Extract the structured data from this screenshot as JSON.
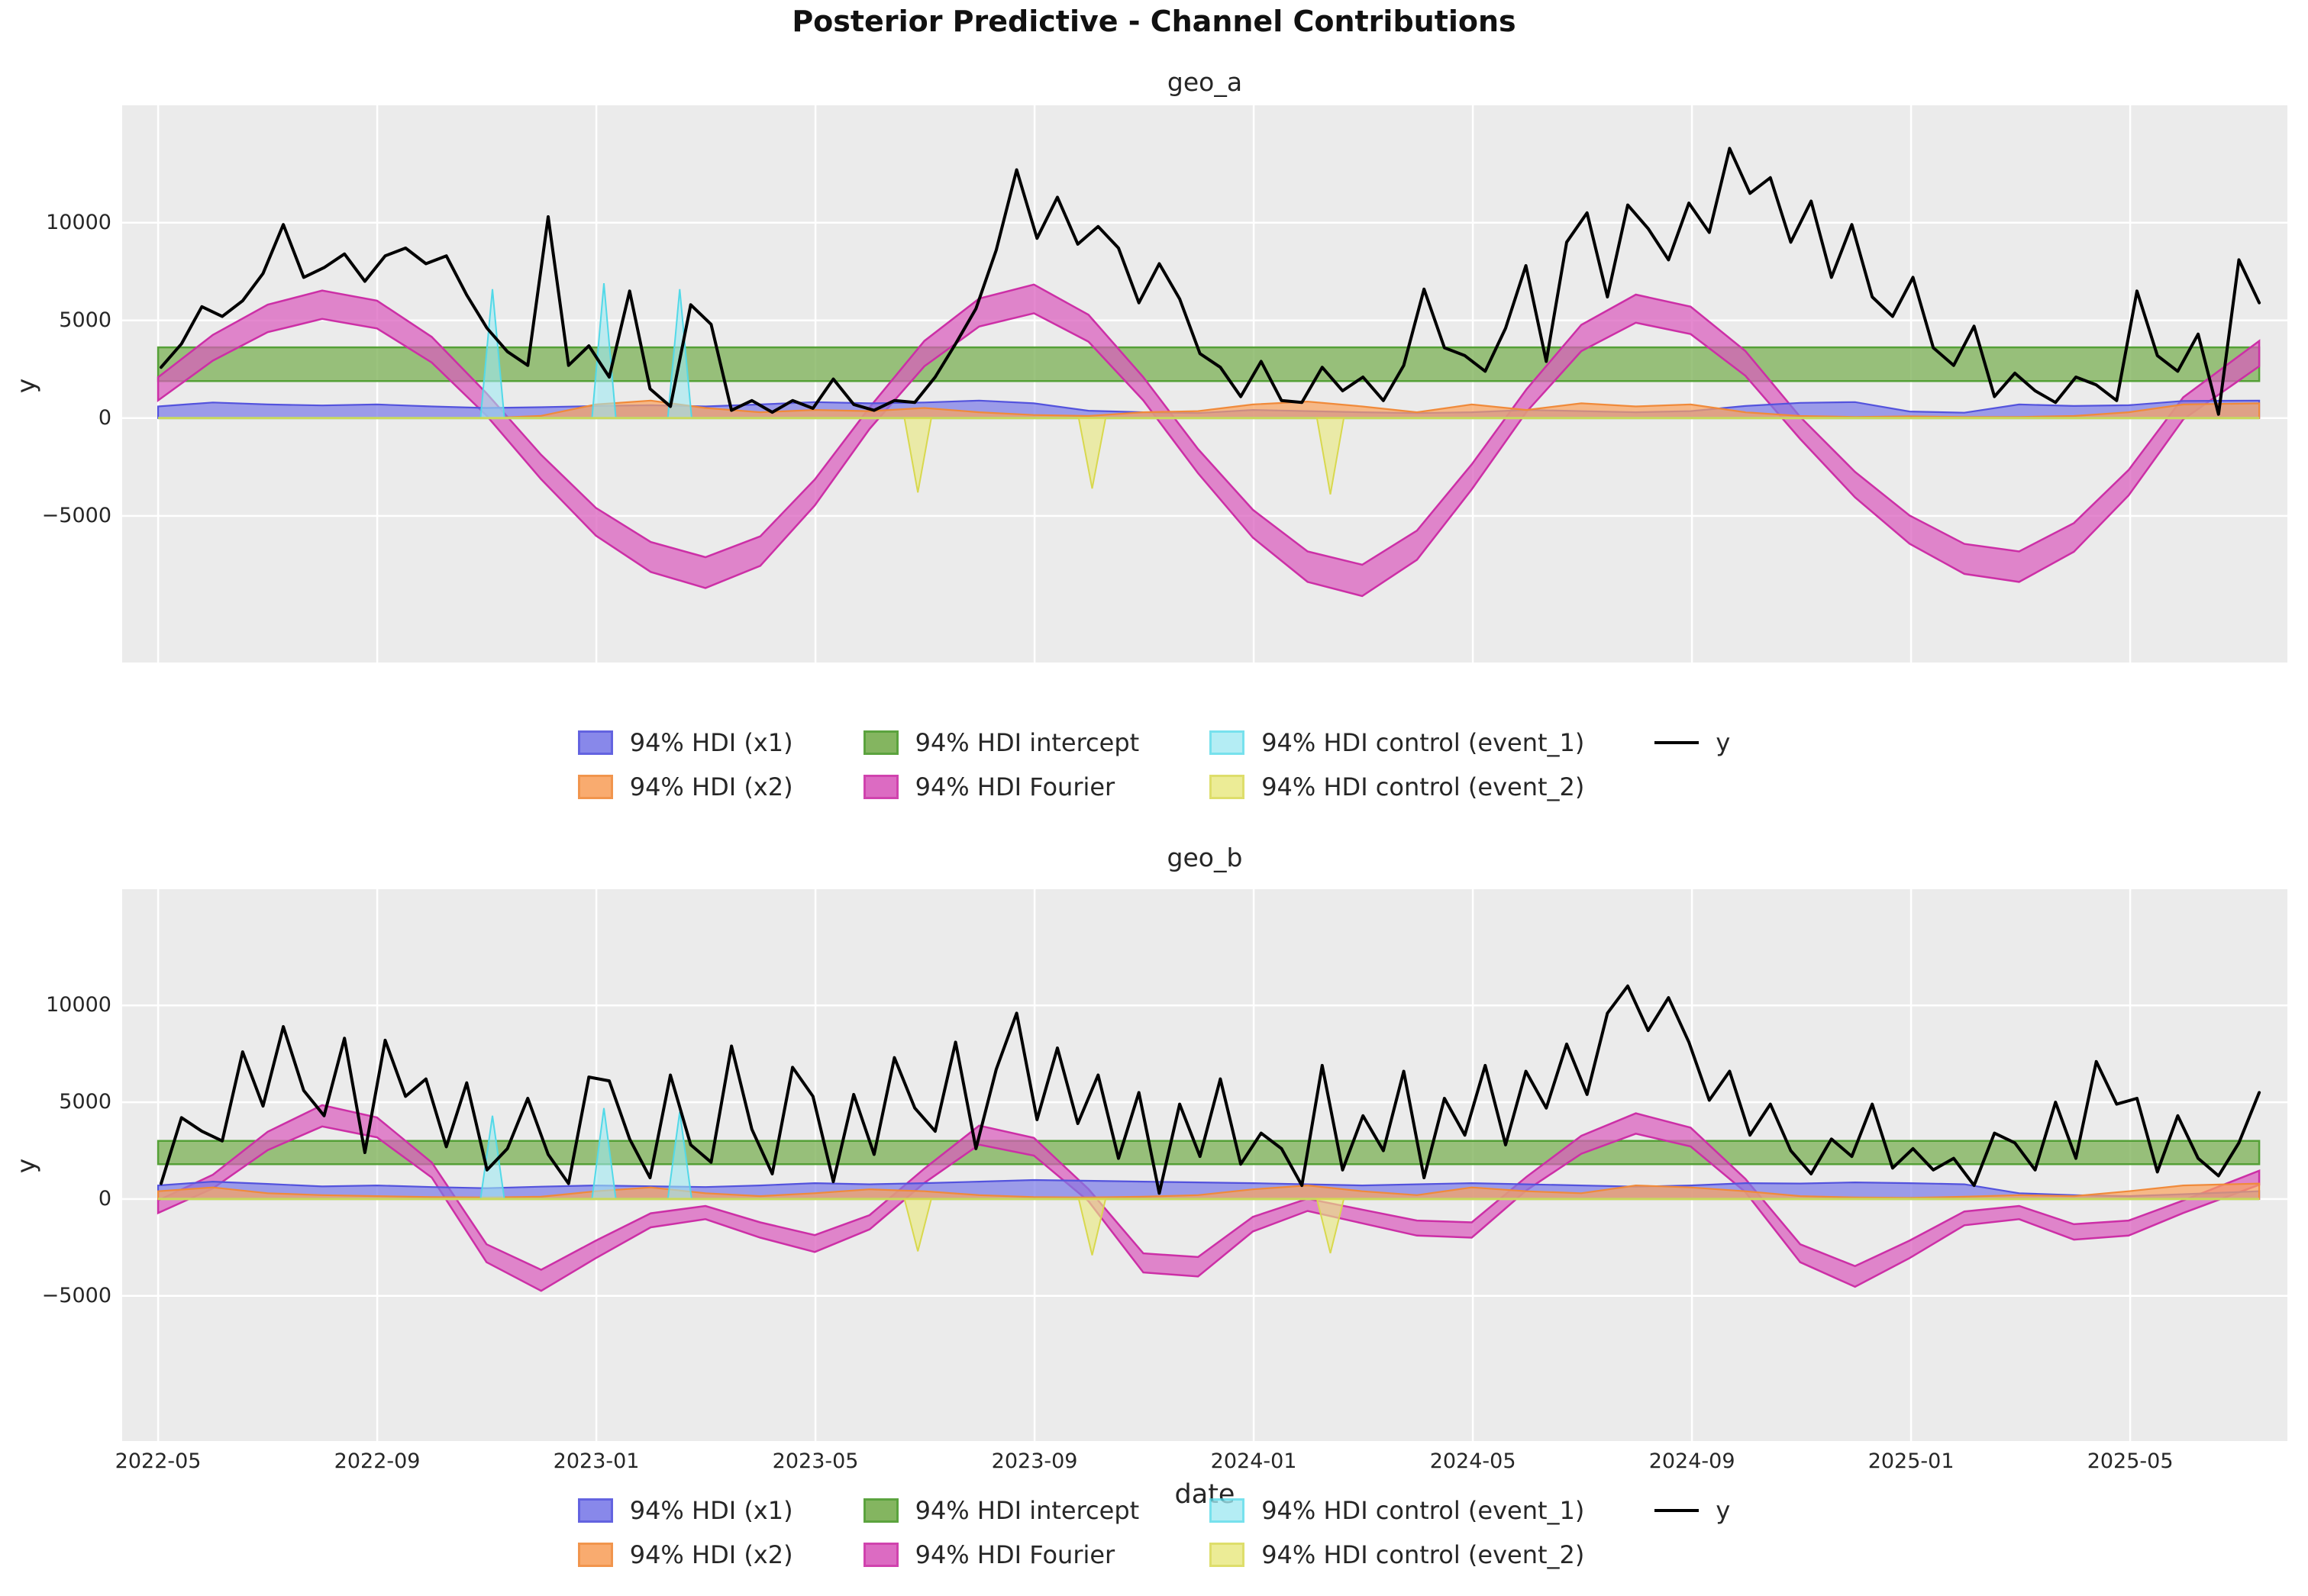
{
  "figure": {
    "title": "Posterior Predictive - Channel Contributions",
    "background": "#ffffff"
  },
  "axis": {
    "xlabel": "date",
    "ylabel": "y",
    "plot_bg": "#ebebeb",
    "grid_color": "#ffffff",
    "ylim": [
      -12500,
      16000
    ],
    "x_data_start": 0.0166,
    "x_data_end": 0.987,
    "xticks": [
      {
        "label": "2022-05",
        "f": 0.0166
      },
      {
        "label": "2022-09",
        "f": 0.1178
      },
      {
        "label": "2023-01",
        "f": 0.219
      },
      {
        "label": "2023-05",
        "f": 0.3202
      },
      {
        "label": "2023-09",
        "f": 0.4214
      },
      {
        "label": "2024-01",
        "f": 0.5226
      },
      {
        "label": "2024-05",
        "f": 0.6238
      },
      {
        "label": "2024-09",
        "f": 0.725
      },
      {
        "label": "2025-01",
        "f": 0.8262
      },
      {
        "label": "2025-05",
        "f": 0.9274
      }
    ],
    "yticks": [
      {
        "label": "10000",
        "value": 10000
      },
      {
        "label": "5000",
        "value": 5000
      },
      {
        "label": "0",
        "value": 0
      },
      {
        "label": "−5000",
        "value": -5000
      }
    ],
    "band_x": [
      0.0166,
      0.0419,
      0.0672,
      0.0924,
      0.1177,
      0.143,
      0.1683,
      0.1935,
      0.2188,
      0.2441,
      0.2694,
      0.2947,
      0.3199,
      0.3452,
      0.3705,
      0.3958,
      0.4211,
      0.4463,
      0.4716,
      0.4969,
      0.5222,
      0.5475,
      0.5727,
      0.598,
      0.6233,
      0.6486,
      0.6739,
      0.6991,
      0.7244,
      0.7497,
      0.775,
      0.8003,
      0.8255,
      0.8508,
      0.8761,
      0.9014,
      0.9267,
      0.9519,
      0.987
    ]
  },
  "styles": {
    "x1": {
      "fill": "#7c7ce8",
      "edge": "#5353dd",
      "fill_opacity": 0.72
    },
    "x2": {
      "fill": "#f9a360",
      "edge": "#f08a3a",
      "fill_opacity": 0.72
    },
    "intercept": {
      "fill": "#7fb25a",
      "edge": "#55a037",
      "fill_opacity": 0.78
    },
    "fourier": {
      "fill": "#d95cbc",
      "edge": "#cc2fa6",
      "fill_opacity": 0.72
    },
    "event_1": {
      "fill": "#9fe9f2",
      "edge": "#52d9e8",
      "fill_opacity": 0.6
    },
    "event_2": {
      "fill": "#e9e982",
      "edge": "#d8d84e",
      "fill_opacity": 0.65
    },
    "y_line": {
      "color": "#000000"
    }
  },
  "legend": {
    "entries": [
      {
        "key": "x1",
        "label": "94% HDI (x1)",
        "type": "patch",
        "col": 0
      },
      {
        "key": "x2",
        "label": "94% HDI (x2)",
        "type": "patch",
        "col": 0
      },
      {
        "key": "intercept",
        "label": "94% HDI intercept",
        "type": "patch",
        "col": 1
      },
      {
        "key": "fourier",
        "label": "94% HDI Fourier",
        "type": "patch",
        "col": 1
      },
      {
        "key": "event_1",
        "label": "94% HDI control (event_1)",
        "type": "patch",
        "col": 2
      },
      {
        "key": "event_2",
        "label": "94% HDI control (event_2)",
        "type": "patch",
        "col": 2
      },
      {
        "key": "y_line",
        "label": "y",
        "type": "line",
        "col": 3
      }
    ]
  },
  "chart_data": [
    {
      "type": "line",
      "title": "geo_a",
      "xlabel": "date",
      "ylabel": "y",
      "series": {
        "intercept": {
          "lo": 1900,
          "hi": 3620
        },
        "fourier": {
          "lo": [
            905,
            2942,
            4396,
            5075,
            4590,
            2845,
            129,
            -3125,
            -6010,
            -7864,
            -8688,
            -7555,
            -4464,
            -550,
            2651,
            4687,
            5366,
            3911,
            905,
            -2816,
            -6113,
            -8379,
            -9100,
            -7246,
            -3640,
            323,
            3427,
            4881,
            4299,
            2166,
            -1065,
            -4052,
            -6422,
            -7967,
            -8379,
            -6834,
            -3949,
            -65,
            2651
          ],
          "hi": [
            2095,
            4258,
            5804,
            6525,
            6010,
            4155,
            1271,
            -1875,
            -4590,
            -6336,
            -7112,
            -6045,
            -3136,
            550,
            3949,
            6113,
            6834,
            5289,
            2095,
            -1584,
            -4687,
            -6821,
            -7500,
            -5754,
            -2360,
            1477,
            4773,
            6319,
            5701,
            3434,
            65,
            -2748,
            -4978,
            -6433,
            -6821,
            -5366,
            -2651,
            1065,
            3949
          ]
        },
        "x1": {
          "hi": [
            600,
            800,
            700,
            650,
            700,
            600,
            520,
            560,
            620,
            660,
            600,
            700,
            820,
            760,
            800,
            900,
            760,
            380,
            300,
            260,
            420,
            360,
            300,
            260,
            300,
            420,
            360,
            300,
            360,
            620,
            780,
            820,
            340,
            280,
            700,
            620,
            660,
            880,
            900
          ]
        },
        "x2": {
          "hi": [
            0,
            0,
            0,
            0,
            0,
            0,
            0,
            120,
            700,
            900,
            520,
            300,
            420,
            360,
            520,
            300,
            160,
            110,
            300,
            360,
            700,
            850,
            600,
            300,
            700,
            420,
            760,
            600,
            700,
            300,
            110,
            60,
            90,
            60,
            60,
            110,
            300,
            700,
            760
          ]
        },
        "event_1": {
          "halfwidth": 0.0055,
          "spikes": [
            {
              "f": 0.171,
              "peak": 6600
            },
            {
              "f": 0.2225,
              "peak": 6900
            },
            {
              "f": 0.2575,
              "peak": 6600
            }
          ]
        },
        "event_2": {
          "halfwidth": 0.0062,
          "spikes": [
            {
              "f": 0.3675,
              "peak": -3800
            },
            {
              "f": 0.448,
              "peak": -3600
            },
            {
              "f": 0.558,
              "peak": -3900
            }
          ]
        },
        "y_line": {
          "x_start": 0.018,
          "x_end": 0.987,
          "values": [
            2600,
            3800,
            5700,
            5200,
            6000,
            7400,
            9900,
            7200,
            7700,
            8400,
            7000,
            8300,
            8700,
            7900,
            8300,
            6300,
            4600,
            3400,
            2700,
            10300,
            2700,
            3700,
            2100,
            6500,
            1500,
            600,
            5800,
            4800,
            400,
            900,
            300,
            900,
            500,
            2000,
            700,
            400,
            900,
            800,
            2100,
            3800,
            5600,
            8600,
            12700,
            9200,
            11300,
            8900,
            9800,
            8700,
            5900,
            7900,
            6100,
            3300,
            2600,
            1100,
            2900,
            900,
            800,
            2600,
            1400,
            2100,
            900,
            2700,
            6600,
            3600,
            3200,
            2400,
            4600,
            7800,
            2900,
            9000,
            10500,
            6200,
            10900,
            9700,
            8100,
            11000,
            9500,
            13800,
            11500,
            12300,
            9000,
            11100,
            7200,
            9900,
            6200,
            5200,
            7200,
            3600,
            2700,
            4700,
            1100,
            2300,
            1400,
            800,
            2100,
            1700,
            900,
            6500,
            3200,
            2400,
            4300,
            200,
            8100,
            5900
          ]
        }
      }
    },
    {
      "type": "line",
      "title": "geo_b",
      "xlabel": "date",
      "ylabel": "y",
      "series": {
        "intercept": {
          "lo": 1800,
          "hi": 3000
        },
        "fourier": {
          "lo": [
            -723,
            548,
            2526,
            3750,
            3185,
            1113,
            -3263,
            -4744,
            -3051,
            -1464,
            -1041,
            -1993,
            -2734,
            -1570,
            830,
            2808,
            2243,
            -112,
            -3792,
            -4003,
            -1676,
            -617,
            -1252,
            -1887,
            -1993,
            453,
            2337,
            3373,
            2714,
            359,
            -3263,
            -4533,
            -3051,
            -1358,
            -1041,
            -2099,
            -1887,
            -723,
            736
          ],
          "hi": [
            -77,
            1252,
            3474,
            4850,
            4215,
            1887,
            -2337,
            -3656,
            -2149,
            -736,
            -359,
            -1207,
            -1866,
            -830,
            1570,
            3792,
            3157,
            512,
            -2808,
            -2997,
            -924,
            17,
            -548,
            -1113,
            -1207,
            1147,
            3263,
            4427,
            3686,
            1041,
            -2337,
            -3467,
            -2149,
            -642,
            -359,
            -1301,
            -1113,
            -77,
            1464
          ]
        },
        "x1": {
          "hi": [
            700,
            900,
            780,
            650,
            700,
            620,
            560,
            640,
            700,
            660,
            620,
            700,
            820,
            760,
            820,
            900,
            980,
            940,
            900,
            860,
            820,
            760,
            700,
            760,
            820,
            760,
            700,
            640,
            700,
            820,
            800,
            860,
            820,
            760,
            300,
            200,
            150,
            250,
            400
          ]
        },
        "x2": {
          "hi": [
            400,
            600,
            300,
            200,
            150,
            100,
            80,
            120,
            400,
            600,
            300,
            150,
            300,
            500,
            400,
            200,
            100,
            80,
            120,
            200,
            500,
            700,
            400,
            200,
            600,
            400,
            300,
            700,
            600,
            400,
            150,
            80,
            60,
            120,
            200,
            150,
            400,
            700,
            800
          ]
        },
        "event_1": {
          "halfwidth": 0.0055,
          "spikes": [
            {
              "f": 0.171,
              "peak": 4300
            },
            {
              "f": 0.2225,
              "peak": 4700
            },
            {
              "f": 0.2575,
              "peak": 4500
            }
          ]
        },
        "event_2": {
          "halfwidth": 0.0062,
          "spikes": [
            {
              "f": 0.3675,
              "peak": -2700
            },
            {
              "f": 0.448,
              "peak": -2900
            },
            {
              "f": 0.558,
              "peak": -2800
            }
          ]
        },
        "y_line": {
          "x_start": 0.018,
          "x_end": 0.987,
          "values": [
            800,
            4200,
            3500,
            3000,
            7600,
            4800,
            8900,
            5600,
            4300,
            8300,
            2400,
            8200,
            5300,
            6200,
            2700,
            6000,
            1500,
            2600,
            5200,
            2300,
            800,
            6300,
            6100,
            3100,
            1100,
            6400,
            2800,
            1900,
            7900,
            3600,
            1300,
            6800,
            5300,
            900,
            5400,
            2300,
            7300,
            4700,
            3500,
            8100,
            2600,
            6700,
            9600,
            4100,
            7800,
            3900,
            6400,
            2100,
            5500,
            300,
            4900,
            2200,
            6200,
            1800,
            3400,
            2600,
            700,
            6900,
            1500,
            4300,
            2500,
            6600,
            1100,
            5200,
            3300,
            6900,
            2800,
            6600,
            4700,
            8000,
            5400,
            9600,
            11000,
            8700,
            10400,
            8100,
            5100,
            6600,
            3300,
            4900,
            2500,
            1300,
            3100,
            2200,
            4900,
            1600,
            2600,
            1500,
            2100,
            700,
            3400,
            2900,
            1500,
            5000,
            2100,
            7100,
            4900,
            5200,
            1400,
            4300,
            2100,
            1200,
            2900,
            5500
          ]
        }
      }
    }
  ]
}
